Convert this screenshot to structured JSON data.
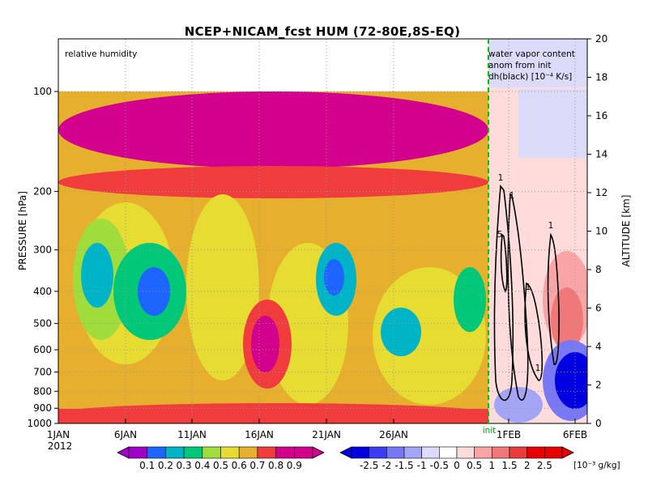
{
  "chart_data": {
    "type": "heatmap",
    "title": "NCEP+NICAM_fcst HUM (72-80E,8S-EQ)",
    "left_panel": {
      "label": "relative humidity",
      "xaxis_ticks": [
        "1JAN",
        "6JAN",
        "11JAN",
        "16JAN",
        "21JAN",
        "26JAN"
      ],
      "year": "2012",
      "colorbar_levels": [
        0.1,
        0.2,
        0.3,
        0.4,
        0.5,
        0.6,
        0.7,
        0.8,
        0.9
      ],
      "colorbar_labels": [
        "0.1",
        "0.2",
        "0.3",
        "0.4",
        "0.5",
        "0.6",
        "0.7",
        "0.8",
        "0.9"
      ]
    },
    "right_panel": {
      "label_lines": [
        "water vapor content",
        "anom from init",
        "dh(black) [10⁻⁴ K/s]"
      ],
      "xaxis_ticks": [
        "1FEB",
        "6FEB"
      ],
      "init_label": "init",
      "contour_labels": [
        "1",
        "1",
        "5",
        "1",
        "1",
        "1"
      ],
      "colorbar_levels": [
        -2.5,
        -2,
        -1.5,
        -1,
        -0.5,
        0,
        0.5,
        1,
        1.5,
        2,
        2.5
      ],
      "colorbar_labels": [
        "-2.5",
        "-2",
        "-1.5",
        "-1",
        "-0.5",
        "0",
        "0.5",
        "1",
        "1.5",
        "2",
        "2.5"
      ],
      "colorbar_unit": "[10⁻³ g/kg]"
    },
    "yaxis_left": {
      "label": "PRESSURE [hPa]",
      "ticks": [
        "100",
        "200",
        "300",
        "400",
        "500",
        "600",
        "700",
        "800",
        "900",
        "1000"
      ],
      "scale": "log"
    },
    "yaxis_right": {
      "label": "ALTITUDE [km]",
      "ticks": [
        "0",
        "2",
        "4",
        "6",
        "8",
        "10",
        "12",
        "14",
        "16",
        "18",
        "20"
      ]
    },
    "colors": {
      "rh": [
        "#a000c8",
        "#1e64ff",
        "#00b4c8",
        "#00c878",
        "#a0dc3c",
        "#e6dc32",
        "#e6af2d",
        "#f03c3c",
        "#d2008c"
      ],
      "anom": [
        "#0000e0",
        "#3c3cf0",
        "#7878f5",
        "#a5a5f5",
        "#dcdcfa",
        "#ffffff",
        "#ffdcdc",
        "#faa5a5",
        "#f07878",
        "#eb3c3c",
        "#e60000"
      ]
    }
  }
}
